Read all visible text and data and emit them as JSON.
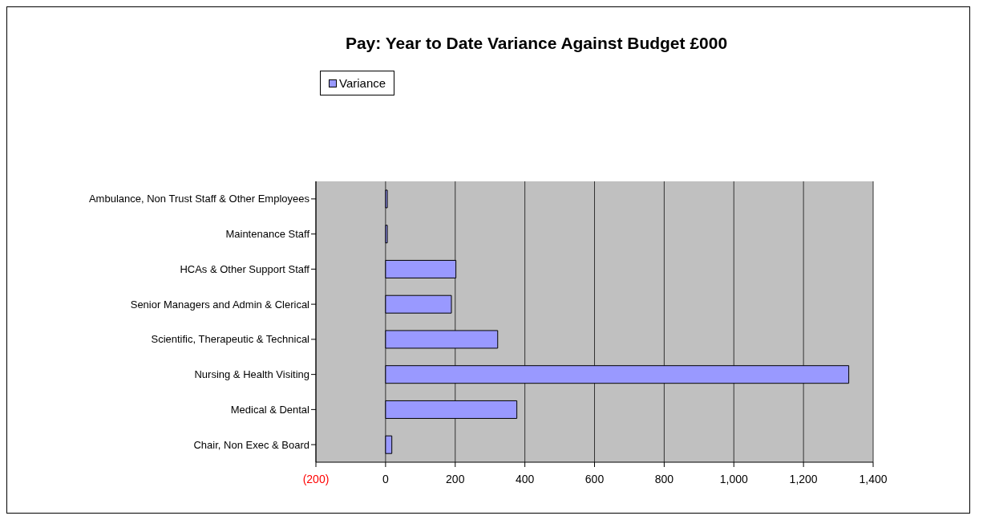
{
  "chart_data": {
    "type": "bar",
    "orientation": "horizontal",
    "title": "Pay: Year to Date Variance Against Budget £000",
    "categories": [
      "Ambulance, Non Trust Staff & Other Employees",
      "Maintenance Staff",
      "HCAs & Other Support Staff",
      "Senior Managers and Admin & Clerical",
      "Scientific, Therapeutic & Technical",
      "Nursing & Health Visiting",
      "Medical & Dental",
      "Chair, Non Exec & Board"
    ],
    "series": [
      {
        "name": "Variance",
        "color": "#9999ff",
        "values": [
          5,
          5,
          202,
          189,
          322,
          1330,
          377,
          18
        ]
      }
    ],
    "xlim": [
      -200,
      1400
    ],
    "xticks": [
      {
        "value": -200,
        "label": "(200)"
      },
      0,
      200,
      400,
      600,
      800,
      "1,000",
      "1,200",
      "1,400"
    ],
    "grid": "x",
    "legend": "top"
  }
}
